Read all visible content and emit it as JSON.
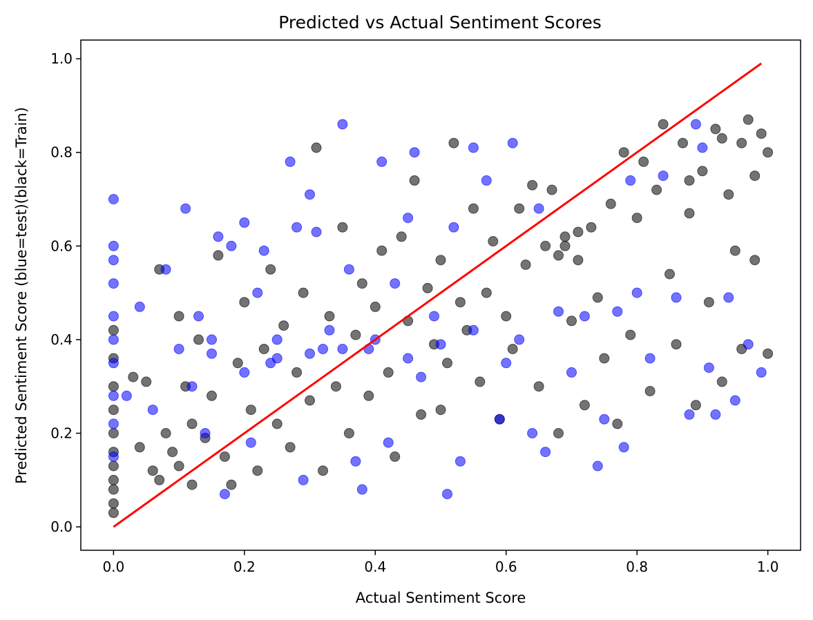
{
  "chart_data": {
    "type": "scatter",
    "title": "Predicted vs Actual Sentiment Scores",
    "xlabel": "Actual Sentiment Score",
    "ylabel": "Predicted Sentiment Score (blue=test)(black=Train)",
    "xlim": [
      -0.05,
      1.05
    ],
    "ylim": [
      -0.05,
      1.04
    ],
    "xticks": [
      "0.0",
      "0.2",
      "0.4",
      "0.6",
      "0.8",
      "1.0"
    ],
    "yticks": [
      "0.0",
      "0.2",
      "0.4",
      "0.6",
      "0.8",
      "1.0"
    ],
    "grid": false,
    "colors": {
      "train": "#000000",
      "test": "#0000ff",
      "line": "#ff0000"
    },
    "marker_alpha": 0.55,
    "series": [
      {
        "key": "train",
        "points": [
          [
            0,
            0.03
          ],
          [
            0,
            0.05
          ],
          [
            0,
            0.08
          ],
          [
            0,
            0.1
          ],
          [
            0,
            0.13
          ],
          [
            0,
            0.16
          ],
          [
            0,
            0.2
          ],
          [
            0,
            0.25
          ],
          [
            0,
            0.3
          ],
          [
            0,
            0.36
          ],
          [
            0,
            0.42
          ],
          [
            0.03,
            0.32
          ],
          [
            0.04,
            0.17
          ],
          [
            0.05,
            0.31
          ],
          [
            0.06,
            0.12
          ],
          [
            0.07,
            0.1
          ],
          [
            0.07,
            0.55
          ],
          [
            0.08,
            0.2
          ],
          [
            0.09,
            0.16
          ],
          [
            0.1,
            0.45
          ],
          [
            0.1,
            0.13
          ],
          [
            0.11,
            0.3
          ],
          [
            0.12,
            0.09
          ],
          [
            0.12,
            0.22
          ],
          [
            0.13,
            0.4
          ],
          [
            0.14,
            0.19
          ],
          [
            0.15,
            0.28
          ],
          [
            0.16,
            0.58
          ],
          [
            0.17,
            0.15
          ],
          [
            0.18,
            0.09
          ],
          [
            0.19,
            0.35
          ],
          [
            0.2,
            0.48
          ],
          [
            0.21,
            0.25
          ],
          [
            0.22,
            0.12
          ],
          [
            0.23,
            0.38
          ],
          [
            0.24,
            0.55
          ],
          [
            0.25,
            0.22
          ],
          [
            0.26,
            0.43
          ],
          [
            0.27,
            0.17
          ],
          [
            0.28,
            0.33
          ],
          [
            0.29,
            0.5
          ],
          [
            0.3,
            0.27
          ],
          [
            0.31,
            0.81
          ],
          [
            0.32,
            0.12
          ],
          [
            0.33,
            0.45
          ],
          [
            0.34,
            0.3
          ],
          [
            0.35,
            0.64
          ],
          [
            0.36,
            0.2
          ],
          [
            0.37,
            0.41
          ],
          [
            0.38,
            0.52
          ],
          [
            0.39,
            0.28
          ],
          [
            0.4,
            0.47
          ],
          [
            0.41,
            0.59
          ],
          [
            0.42,
            0.33
          ],
          [
            0.43,
            0.15
          ],
          [
            0.44,
            0.62
          ],
          [
            0.45,
            0.44
          ],
          [
            0.46,
            0.74
          ],
          [
            0.47,
            0.24
          ],
          [
            0.48,
            0.51
          ],
          [
            0.49,
            0.39
          ],
          [
            0.5,
            0.57
          ],
          [
            0.5,
            0.25
          ],
          [
            0.51,
            0.35
          ],
          [
            0.52,
            0.82
          ],
          [
            0.53,
            0.48
          ],
          [
            0.54,
            0.42
          ],
          [
            0.55,
            0.68
          ],
          [
            0.56,
            0.31
          ],
          [
            0.57,
            0.5
          ],
          [
            0.58,
            0.61
          ],
          [
            0.59,
            0.23
          ],
          [
            0.6,
            0.45
          ],
          [
            0.61,
            0.38
          ],
          [
            0.62,
            0.68
          ],
          [
            0.63,
            0.56
          ],
          [
            0.64,
            0.73
          ],
          [
            0.65,
            0.3
          ],
          [
            0.66,
            0.6
          ],
          [
            0.67,
            0.72
          ],
          [
            0.68,
            0.2
          ],
          [
            0.69,
            0.62
          ],
          [
            0.7,
            0.44
          ],
          [
            0.71,
            0.57
          ],
          [
            0.72,
            0.26
          ],
          [
            0.73,
            0.64
          ],
          [
            0.74,
            0.49
          ],
          [
            0.75,
            0.36
          ],
          [
            0.76,
            0.69
          ],
          [
            0.77,
            0.22
          ],
          [
            0.78,
            0.8
          ],
          [
            0.79,
            0.41
          ],
          [
            0.8,
            0.66
          ],
          [
            0.81,
            0.78
          ],
          [
            0.82,
            0.29
          ],
          [
            0.83,
            0.72
          ],
          [
            0.84,
            0.86
          ],
          [
            0.85,
            0.54
          ],
          [
            0.86,
            0.39
          ],
          [
            0.87,
            0.82
          ],
          [
            0.88,
            0.67
          ],
          [
            0.89,
            0.26
          ],
          [
            0.9,
            0.76
          ],
          [
            0.91,
            0.48
          ],
          [
            0.92,
            0.85
          ],
          [
            0.93,
            0.31
          ],
          [
            0.94,
            0.71
          ],
          [
            0.95,
            0.59
          ],
          [
            0.96,
            0.82
          ],
          [
            0.96,
            0.38
          ],
          [
            0.97,
            0.87
          ],
          [
            0.98,
            0.75
          ],
          [
            0.98,
            0.57
          ],
          [
            0.99,
            0.84
          ],
          [
            1.0,
            0.8
          ],
          [
            1.0,
            0.37
          ],
          [
            0.93,
            0.83
          ],
          [
            0.88,
            0.74
          ],
          [
            0.69,
            0.6
          ],
          [
            0.71,
            0.63
          ],
          [
            0.68,
            0.58
          ]
        ]
      },
      {
        "key": "test",
        "points": [
          [
            0,
            0.7
          ],
          [
            0,
            0.6
          ],
          [
            0,
            0.57
          ],
          [
            0,
            0.52
          ],
          [
            0,
            0.45
          ],
          [
            0,
            0.4
          ],
          [
            0,
            0.35
          ],
          [
            0,
            0.28
          ],
          [
            0,
            0.22
          ],
          [
            0,
            0.15
          ],
          [
            0.02,
            0.28
          ],
          [
            0.04,
            0.47
          ],
          [
            0.06,
            0.25
          ],
          [
            0.08,
            0.55
          ],
          [
            0.1,
            0.38
          ],
          [
            0.11,
            0.68
          ],
          [
            0.12,
            0.3
          ],
          [
            0.13,
            0.45
          ],
          [
            0.14,
            0.2
          ],
          [
            0.15,
            0.4
          ],
          [
            0.16,
            0.62
          ],
          [
            0.17,
            0.07
          ],
          [
            0.18,
            0.6
          ],
          [
            0.2,
            0.65
          ],
          [
            0.21,
            0.18
          ],
          [
            0.22,
            0.5
          ],
          [
            0.23,
            0.59
          ],
          [
            0.24,
            0.35
          ],
          [
            0.25,
            0.4
          ],
          [
            0.27,
            0.78
          ],
          [
            0.28,
            0.64
          ],
          [
            0.29,
            0.1
          ],
          [
            0.3,
            0.71
          ],
          [
            0.31,
            0.63
          ],
          [
            0.32,
            0.38
          ],
          [
            0.33,
            0.42
          ],
          [
            0.35,
            0.86
          ],
          [
            0.36,
            0.55
          ],
          [
            0.37,
            0.14
          ],
          [
            0.38,
            0.08
          ],
          [
            0.39,
            0.38
          ],
          [
            0.41,
            0.78
          ],
          [
            0.42,
            0.18
          ],
          [
            0.43,
            0.52
          ],
          [
            0.45,
            0.66
          ],
          [
            0.46,
            0.8
          ],
          [
            0.47,
            0.32
          ],
          [
            0.49,
            0.45
          ],
          [
            0.51,
            0.07
          ],
          [
            0.52,
            0.64
          ],
          [
            0.53,
            0.14
          ],
          [
            0.55,
            0.81
          ],
          [
            0.57,
            0.74
          ],
          [
            0.59,
            0.23
          ],
          [
            0.61,
            0.82
          ],
          [
            0.62,
            0.4
          ],
          [
            0.64,
            0.2
          ],
          [
            0.65,
            0.68
          ],
          [
            0.66,
            0.16
          ],
          [
            0.68,
            0.46
          ],
          [
            0.7,
            0.33
          ],
          [
            0.72,
            0.45
          ],
          [
            0.74,
            0.13
          ],
          [
            0.75,
            0.23
          ],
          [
            0.77,
            0.46
          ],
          [
            0.78,
            0.17
          ],
          [
            0.79,
            0.74
          ],
          [
            0.8,
            0.5
          ],
          [
            0.82,
            0.36
          ],
          [
            0.84,
            0.75
          ],
          [
            0.86,
            0.49
          ],
          [
            0.88,
            0.24
          ],
          [
            0.89,
            0.86
          ],
          [
            0.9,
            0.81
          ],
          [
            0.91,
            0.34
          ],
          [
            0.92,
            0.24
          ],
          [
            0.94,
            0.49
          ],
          [
            0.95,
            0.27
          ],
          [
            0.97,
            0.39
          ],
          [
            0.99,
            0.33
          ],
          [
            0.25,
            0.36
          ],
          [
            0.35,
            0.38
          ],
          [
            0.45,
            0.36
          ],
          [
            0.3,
            0.37
          ],
          [
            0.4,
            0.4
          ],
          [
            0.5,
            0.39
          ],
          [
            0.2,
            0.33
          ],
          [
            0.55,
            0.42
          ],
          [
            0.6,
            0.35
          ],
          [
            0.15,
            0.37
          ]
        ]
      }
    ],
    "reference_line": {
      "from": [
        0,
        0
      ],
      "to": [
        0.99,
        0.99
      ]
    }
  }
}
